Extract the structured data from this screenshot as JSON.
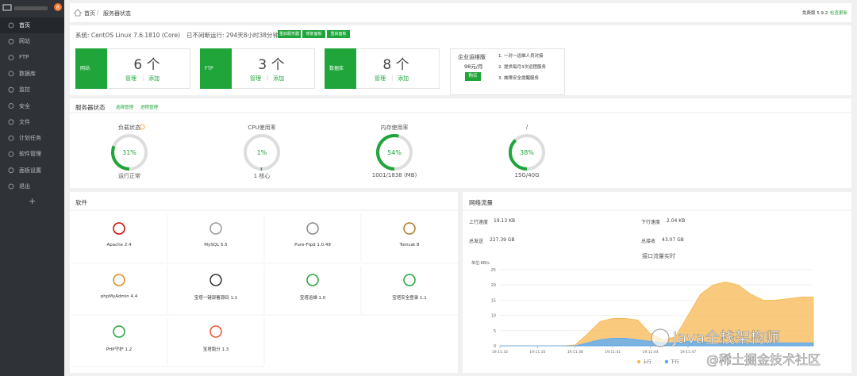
{
  "sidebar": {
    "badge": "8",
    "menu": [
      "首页",
      "网站",
      "FTP",
      "数据库",
      "监控",
      "安全",
      "文件",
      "计划任务",
      "软件管理",
      "面板设置",
      "退出"
    ],
    "add": "+"
  },
  "header": {
    "breadcrumb": [
      "首页",
      "服务器状态"
    ],
    "version": "免费版 5.9.2",
    "update": "检查更新"
  },
  "system": {
    "os": "系统: CentOS Linux 7.6.1810 (Core)",
    "uptime": "已不间断运行: 294天8小时38分钟",
    "buttons": [
      "重启服务器",
      "修复面板",
      "重启面板"
    ]
  },
  "stats": [
    {
      "label": "网站",
      "count": "6 个",
      "manage": "管理",
      "add": "添加"
    },
    {
      "label": "FTP",
      "count": "3 个",
      "manage": "管理",
      "add": "添加"
    },
    {
      "label": "数据库",
      "count": "8 个",
      "manage": "管理",
      "add": "添加"
    }
  ],
  "enterprise": {
    "title": "企业运维版",
    "price": "98元/月",
    "buy": "购买",
    "items": [
      "1. 一对一运维人员对接",
      "2. 提供每月3次远程服务",
      "3. 故障安全提醒服务"
    ]
  },
  "status": {
    "title": "服务器状态",
    "links": [
      "选择管理",
      "进程管理"
    ],
    "gauges": [
      {
        "name": "负载状态",
        "percent": {
          "value": 31,
          "label": "31%"
        },
        "detail": "运行正常"
      },
      {
        "name": "CPU使用率",
        "percent": {
          "value": 1,
          "label": "1%"
        },
        "detail": "1 核心"
      },
      {
        "name": "内存使用率",
        "percent": {
          "value": 54,
          "label": "54%"
        },
        "detail": "1001/1838 (MB)"
      },
      {
        "name": "/",
        "percent": {
          "value": 38,
          "label": "38%"
        },
        "detail": "15G/40G"
      }
    ]
  },
  "software": {
    "title": "软件",
    "items": [
      "Apache 2.4",
      "MySQL 5.5",
      "Pure-Ftpd 1.0.49",
      "Tomcat 8",
      "phpMyAdmin 4.4",
      "宝塔一键部署源码 1.1",
      "宝塔运维 1.0",
      "宝塔安全登录 1.1",
      "PHP守护 1.2",
      "宝塔跑分 1.3"
    ]
  },
  "network": {
    "title": "网络流量",
    "up_label": "上行速度",
    "up": "19.13 KB",
    "down_label": "下行速度",
    "down": "2.04 KB",
    "sent_label": "总发送",
    "sent": "227.39 GB",
    "recv_label": "总接收",
    "recv": "43.07 GB",
    "chart": {
      "type": "area",
      "title": "接口流量实时",
      "y_label": "单位:KB/s",
      "categories": [
        "19:11:32",
        null,
        null,
        "19:11:35",
        null,
        null,
        "19:11:38",
        null,
        null,
        "19:11:41",
        null,
        null,
        "19:11:44",
        null,
        null,
        "19:11:47",
        null,
        null,
        null,
        null,
        null,
        null,
        null,
        null,
        null,
        null
      ],
      "series": [
        {
          "name": "上行",
          "color": "#f7b851",
          "values": [
            0,
            0,
            0,
            0,
            0,
            0,
            0.3,
            4,
            8,
            9,
            9,
            8.5,
            4,
            2,
            3,
            10,
            17,
            20,
            21,
            20,
            17,
            15,
            15,
            15.5,
            16,
            16
          ]
        },
        {
          "name": "下行",
          "color": "#52a9ff",
          "values": [
            0,
            0,
            0,
            0,
            0,
            0,
            0,
            1,
            2,
            2.5,
            2.5,
            2,
            1.5,
            1,
            1,
            1.5,
            1.5,
            1,
            1,
            1,
            1,
            1,
            1,
            1,
            1,
            1
          ]
        }
      ],
      "ylim": [
        0,
        25
      ],
      "yticks": [
        0,
        5,
        10,
        15,
        20,
        25
      ]
    }
  },
  "watermark": {
    "main": "Java全栈架构师",
    "sub": "@稀土掘金技术社区"
  }
}
